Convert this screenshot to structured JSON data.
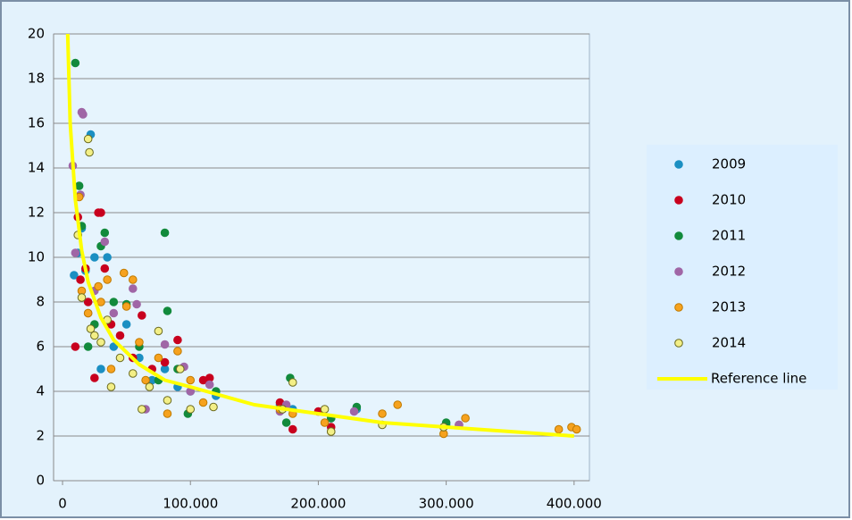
{
  "chart_data": {
    "type": "scatter",
    "xlim": [
      -7000,
      412000
    ],
    "ylim": [
      0,
      20
    ],
    "xticks": [
      0,
      {
        "value": 100000,
        "label": "100.000"
      },
      {
        "value": 200000,
        "label": "200.000"
      },
      {
        "value": 300000,
        "label": "300.000"
      },
      {
        "value": 400000,
        "label": "400.000"
      }
    ],
    "yticks": [
      0,
      2,
      4,
      6,
      8,
      10,
      12,
      14,
      16,
      18,
      20
    ],
    "grid": true,
    "legend": "right",
    "series": [
      {
        "name": "2009",
        "color": "#1b8fc2",
        "x": [
          9000,
          12000,
          15000,
          18000,
          22000,
          25000,
          30000,
          35000,
          40000,
          50000,
          60000,
          70000,
          80000,
          90000,
          100000,
          120000,
          170000,
          180000,
          210000,
          230000,
          300000
        ],
        "values": [
          9.2,
          10.2,
          11.3,
          9.4,
          15.5,
          10,
          5,
          10,
          6,
          7,
          5.5,
          4.5,
          5,
          4.2,
          4,
          3.8,
          3.4,
          3.2,
          2.8,
          3.2,
          2.5
        ]
      },
      {
        "name": "2010",
        "color": "#c8001e",
        "x": [
          10000,
          12000,
          14000,
          18000,
          20000,
          25000,
          28000,
          30000,
          33000,
          38000,
          45000,
          55000,
          62000,
          70000,
          80000,
          90000,
          110000,
          115000,
          170000,
          180000,
          200000,
          210000,
          310000
        ],
        "values": [
          6,
          11.8,
          9,
          9.5,
          8,
          4.6,
          12,
          12,
          9.5,
          7,
          6.5,
          5.5,
          7.4,
          5,
          5.3,
          6.3,
          4.5,
          4.6,
          3.5,
          2.3,
          3.1,
          2.4,
          2.5
        ]
      },
      {
        "name": "2011",
        "color": "#128a3c",
        "x": [
          10000,
          13000,
          15000,
          20000,
          25000,
          30000,
          33000,
          40000,
          50000,
          60000,
          75000,
          80000,
          82000,
          90000,
          98000,
          120000,
          175000,
          178000,
          210000,
          230000,
          300000
        ],
        "values": [
          18.7,
          13.2,
          11.4,
          6,
          7,
          10.5,
          11.1,
          8,
          7.9,
          6,
          4.5,
          11.1,
          7.6,
          5,
          3,
          4,
          2.6,
          4.6,
          2.8,
          3.3,
          2.6
        ]
      },
      {
        "name": "2012",
        "color": "#a066a6",
        "x": [
          8000,
          10000,
          14000,
          15000,
          16000,
          20000,
          25000,
          33000,
          40000,
          55000,
          58000,
          65000,
          80000,
          95000,
          100000,
          115000,
          170000,
          175000,
          228000,
          310000
        ],
        "values": [
          14.1,
          10.2,
          12.8,
          16.5,
          16.4,
          7.5,
          8.5,
          10.7,
          7.5,
          8.6,
          7.9,
          3.2,
          6.1,
          5.1,
          4,
          4.3,
          3.1,
          3.4,
          3.1,
          2.5
        ]
      },
      {
        "name": "2013",
        "color": "#f6a21e",
        "x": [
          13000,
          15000,
          20000,
          28000,
          30000,
          35000,
          38000,
          48000,
          50000,
          55000,
          60000,
          65000,
          75000,
          82000,
          90000,
          100000,
          110000,
          170000,
          180000,
          205000,
          210000,
          250000,
          262000,
          298000,
          315000,
          388000,
          398000,
          402000
        ],
        "values": [
          12.7,
          8.5,
          7.5,
          8.7,
          8,
          9,
          5,
          9.3,
          7.8,
          9,
          6.2,
          4.5,
          5.5,
          3.0,
          5.8,
          4.5,
          3.5,
          3.2,
          3.0,
          2.6,
          2.2,
          3.0,
          3.4,
          2.1,
          2.8,
          2.3,
          2.4,
          2.3
        ]
      },
      {
        "name": "2014",
        "color": "#f3ef86",
        "x": [
          12000,
          15000,
          20000,
          21000,
          22000,
          25000,
          30000,
          35000,
          38000,
          45000,
          55000,
          62000,
          68000,
          75000,
          82000,
          92000,
          100000,
          118000,
          172000,
          180000,
          205000,
          210000,
          250000,
          298000
        ],
        "values": [
          11,
          8.2,
          15.3,
          14.7,
          6.8,
          6.5,
          6.2,
          7.2,
          4.2,
          5.5,
          4.8,
          3.2,
          4.2,
          6.7,
          3.6,
          5.0,
          3.2,
          3.3,
          3.2,
          4.4,
          3.2,
          2.2,
          2.5,
          2.4
        ]
      },
      {
        "name": "Reference line",
        "color": "#ffff00",
        "type": "line",
        "x": [
          4000,
          6000,
          10000,
          15000,
          20000,
          30000,
          40000,
          60000,
          80000,
          100000,
          150000,
          200000,
          250000,
          300000,
          350000,
          400000
        ],
        "values": [
          20,
          16,
          12.6,
          10.3,
          8.9,
          7.3,
          6.3,
          5.2,
          4.5,
          4.2,
          3.4,
          3.0,
          2.6,
          2.4,
          2.2,
          2.0
        ]
      }
    ]
  }
}
